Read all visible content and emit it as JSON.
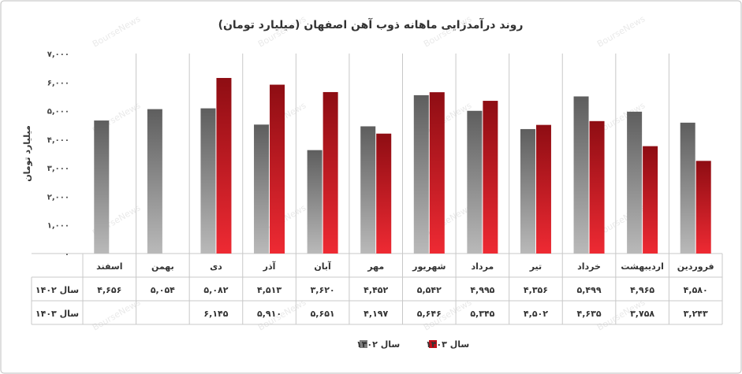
{
  "chart_data": {
    "type": "bar",
    "title": "روند درآمدزایی ماهانه ذوب آهن اصفهان (میلیارد تومان)",
    "xlabel": "",
    "ylabel": "میلیارد تومان",
    "ylim": [
      0,
      7000
    ],
    "yticks": [
      {
        "value": 0,
        "label": "۰"
      },
      {
        "value": 1000,
        "label": "۱,۰۰۰"
      },
      {
        "value": 2000,
        "label": "۲,۰۰۰"
      },
      {
        "value": 3000,
        "label": "۳,۰۰۰"
      },
      {
        "value": 4000,
        "label": "۴,۰۰۰"
      },
      {
        "value": 5000,
        "label": "۵,۰۰۰"
      },
      {
        "value": 6000,
        "label": "۶,۰۰۰"
      },
      {
        "value": 7000,
        "label": "۷,۰۰۰"
      }
    ],
    "categories": [
      "فروردین",
      "اردیبهشت",
      "خرداد",
      "تیر",
      "مرداد",
      "شهریور",
      "مهر",
      "آبان",
      "آذر",
      "دی",
      "بهمن",
      "اسفند"
    ],
    "series": [
      {
        "name": "سال ۱۴۰۲",
        "color": "#7f7f7f",
        "values": [
          4580,
          4965,
          5499,
          4356,
          4995,
          5542,
          4452,
          3620,
          4513,
          5082,
          5054,
          4656
        ],
        "labels": [
          "۴,۵۸۰",
          "۴,۹۶۵",
          "۵,۴۹۹",
          "۴,۳۵۶",
          "۴,۹۹۵",
          "۵,۵۴۲",
          "۴,۴۵۲",
          "۳,۶۲۰",
          "۴,۵۱۳",
          "۵,۰۸۲",
          "۵,۰۵۴",
          "۴,۶۵۶"
        ]
      },
      {
        "name": "سال ۱۴۰۳",
        "color": "#c0101a",
        "values": [
          3243,
          3758,
          4635,
          4502,
          5345,
          5646,
          4197,
          5651,
          5910,
          6145,
          null,
          null
        ],
        "labels": [
          "۳,۲۴۳",
          "۳,۷۵۸",
          "۴,۶۳۵",
          "۴,۵۰۲",
          "۵,۳۴۵",
          "۵,۶۴۶",
          "۴,۱۹۷",
          "۵,۶۵۱",
          "۵,۹۱۰",
          "۶,۱۴۵",
          "",
          ""
        ]
      }
    ],
    "grid": false,
    "legend": "bottom",
    "watermark": "BourseNews"
  }
}
